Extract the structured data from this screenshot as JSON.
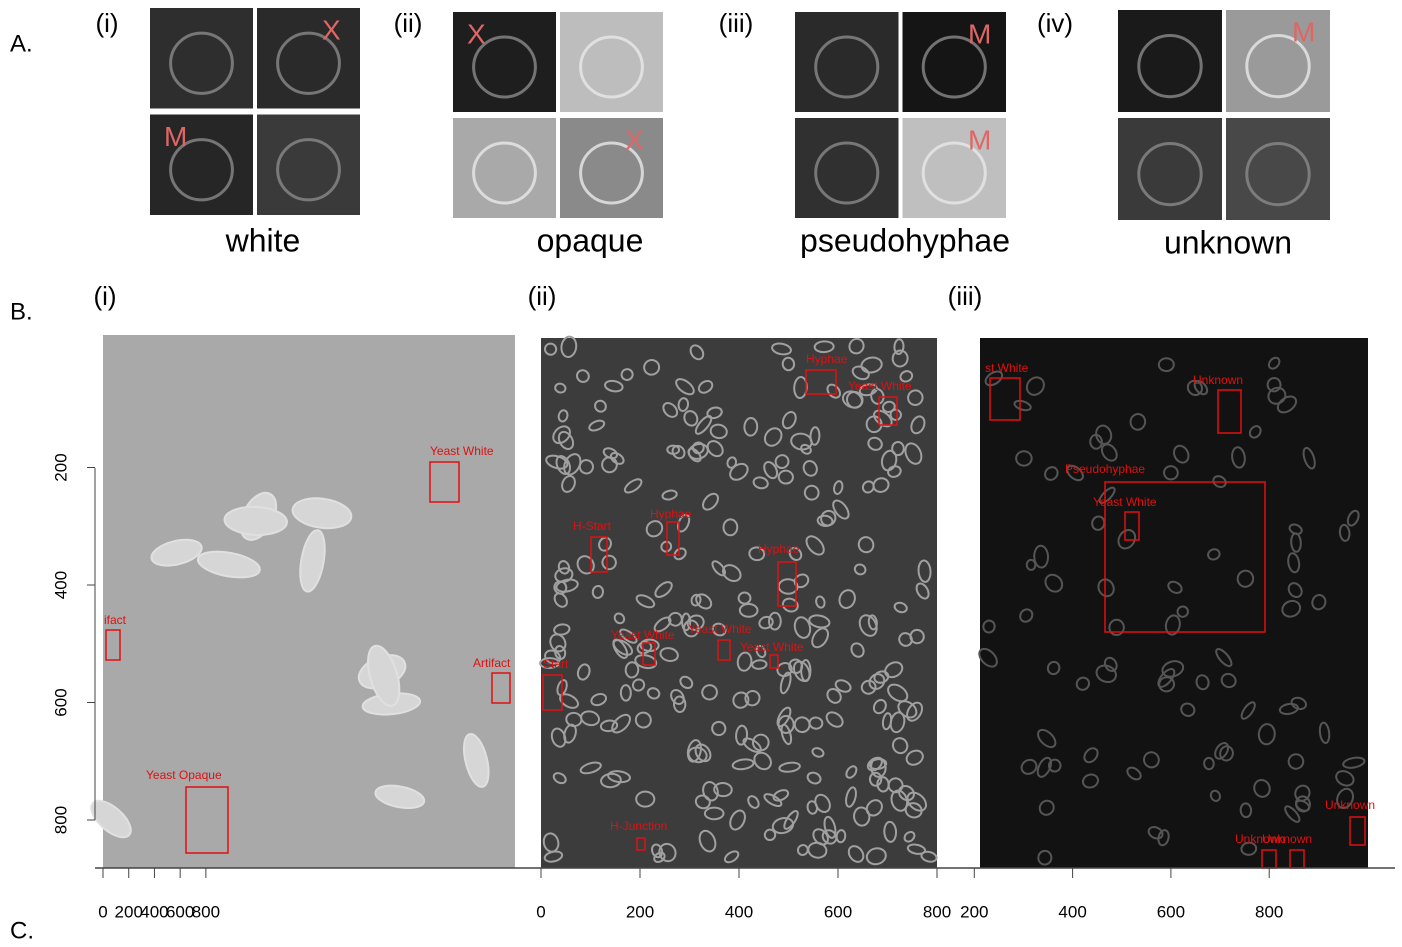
{
  "panel_labels": [
    "A.",
    "B.",
    "C."
  ],
  "panel_a": {
    "groups": [
      {
        "numeral": "(i)",
        "caption": "white",
        "marks": [
          null,
          "X",
          "M",
          null
        ]
      },
      {
        "numeral": "(ii)",
        "caption": "opaque",
        "marks": [
          "X",
          null,
          null,
          "X"
        ]
      },
      {
        "numeral": "(iii)",
        "caption": "pseudohyphae",
        "marks": [
          null,
          "M",
          null,
          "M"
        ]
      },
      {
        "numeral": "(iv)",
        "caption": "unknown",
        "marks": [
          null,
          "M",
          null,
          null
        ]
      }
    ]
  },
  "panel_b": {
    "yticks": [
      200,
      400,
      600,
      800
    ],
    "images": [
      {
        "numeral": "(i)",
        "xticks": [
          0,
          200,
          400,
          600,
          800
        ],
        "boxes": [
          "Yeast White",
          "ifact",
          "Artifact",
          "Yeast Opaque"
        ]
      },
      {
        "numeral": "(ii)",
        "xticks": [
          0,
          200,
          400,
          600,
          800
        ],
        "boxes": [
          "Hyphae",
          "Yeast White",
          "H-Start",
          "Hyphae",
          "Hyphae",
          "Yeast White",
          "Yeast White",
          "Yeast White",
          "Start",
          "H-Junction"
        ]
      },
      {
        "numeral": "(iii)",
        "xticks": [
          200,
          400,
          600,
          800
        ],
        "boxes": [
          "st White",
          "Unknown",
          "Pseudohyphae",
          "Yeast White",
          "Unknown",
          "Unknown",
          "Unknown"
        ]
      }
    ]
  }
}
